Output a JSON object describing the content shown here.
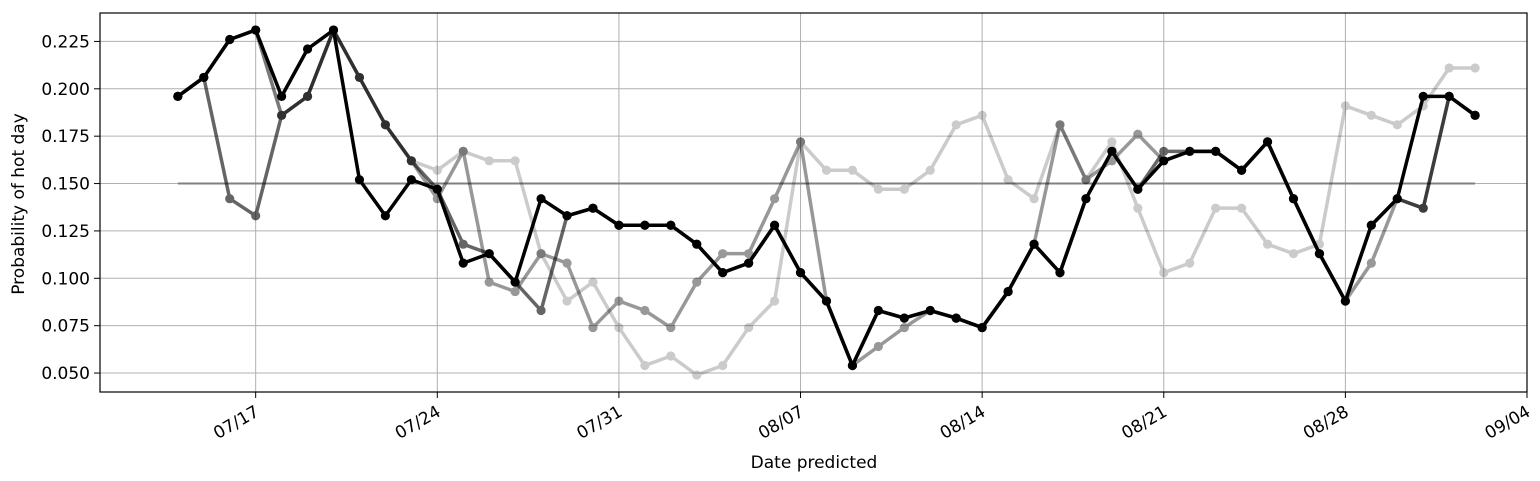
{
  "chart_data": {
    "type": "line",
    "title": "",
    "xlabel": "Date predicted",
    "ylabel": "Probability of hot day",
    "x_axis_kind": "date",
    "xlim": [
      "2019-07-11",
      "2019-09-04"
    ],
    "ylim": [
      0.04,
      0.24
    ],
    "x_ticks": [
      {
        "date": "2019-07-17",
        "label": "07/17"
      },
      {
        "date": "2019-07-24",
        "label": "07/24"
      },
      {
        "date": "2019-07-31",
        "label": "07/31"
      },
      {
        "date": "2019-08-07",
        "label": "08/07"
      },
      {
        "date": "2019-08-14",
        "label": "08/14"
      },
      {
        "date": "2019-08-21",
        "label": "08/21"
      },
      {
        "date": "2019-08-28",
        "label": "08/28"
      },
      {
        "date": "2019-09-04",
        "label": "09/04"
      }
    ],
    "y_ticks": [
      {
        "value": 0.05,
        "label": "0.050"
      },
      {
        "value": 0.075,
        "label": "0.075"
      },
      {
        "value": 0.1,
        "label": "0.100"
      },
      {
        "value": 0.125,
        "label": "0.125"
      },
      {
        "value": 0.15,
        "label": "0.150"
      },
      {
        "value": 0.175,
        "label": "0.175"
      },
      {
        "value": 0.2,
        "label": "0.200"
      },
      {
        "value": 0.225,
        "label": "0.225"
      }
    ],
    "grid": true,
    "reference_line": {
      "value": 0.15,
      "from": "2019-07-14",
      "to": "2019-09-02",
      "color": "#808080"
    },
    "series": [
      {
        "color": "#000000",
        "opacity": 0.2,
        "points": [
          [
            "2019-07-14",
            0.196
          ],
          [
            "2019-07-15",
            0.206
          ],
          [
            "2019-07-16",
            0.226
          ],
          [
            "2019-07-17",
            0.231
          ],
          [
            "2019-07-18",
            0.186
          ],
          [
            "2019-07-19",
            0.196
          ],
          [
            "2019-07-20",
            0.231
          ],
          [
            "2019-07-21",
            0.206
          ],
          [
            "2019-07-22",
            0.181
          ],
          [
            "2019-07-23",
            0.162
          ],
          [
            "2019-07-24",
            0.157
          ],
          [
            "2019-07-25",
            0.167
          ],
          [
            "2019-07-26",
            0.162
          ],
          [
            "2019-07-27",
            0.162
          ],
          [
            "2019-07-28",
            0.113
          ],
          [
            "2019-07-29",
            0.088
          ],
          [
            "2019-07-30",
            0.098
          ],
          [
            "2019-07-31",
            0.074
          ],
          [
            "2019-08-01",
            0.054
          ],
          [
            "2019-08-02",
            0.059
          ],
          [
            "2019-08-03",
            0.049
          ],
          [
            "2019-08-04",
            0.054
          ],
          [
            "2019-08-05",
            0.074
          ],
          [
            "2019-08-06",
            0.088
          ],
          [
            "2019-08-07",
            0.172
          ],
          [
            "2019-08-08",
            0.157
          ],
          [
            "2019-08-09",
            0.157
          ],
          [
            "2019-08-10",
            0.147
          ],
          [
            "2019-08-11",
            0.147
          ],
          [
            "2019-08-12",
            0.157
          ],
          [
            "2019-08-13",
            0.181
          ],
          [
            "2019-08-14",
            0.186
          ],
          [
            "2019-08-15",
            0.152
          ],
          [
            "2019-08-16",
            0.142
          ],
          [
            "2019-08-17",
            0.181
          ],
          [
            "2019-08-18",
            0.152
          ],
          [
            "2019-08-19",
            0.172
          ],
          [
            "2019-08-20",
            0.137
          ],
          [
            "2019-08-21",
            0.103
          ],
          [
            "2019-08-22",
            0.108
          ],
          [
            "2019-08-23",
            0.137
          ],
          [
            "2019-08-24",
            0.137
          ],
          [
            "2019-08-25",
            0.118
          ],
          [
            "2019-08-26",
            0.113
          ],
          [
            "2019-08-27",
            0.118
          ],
          [
            "2019-08-28",
            0.191
          ],
          [
            "2019-08-29",
            0.186
          ],
          [
            "2019-08-30",
            0.181
          ],
          [
            "2019-08-31",
            0.191
          ],
          [
            "2019-09-01",
            0.211
          ],
          [
            "2019-09-02",
            0.211
          ]
        ]
      },
      {
        "color": "#000000",
        "opacity": 0.4,
        "points": [
          [
            "2019-07-14",
            0.196
          ],
          [
            "2019-07-15",
            0.206
          ],
          [
            "2019-07-16",
            0.226
          ],
          [
            "2019-07-17",
            0.231
          ],
          [
            "2019-07-18",
            0.186
          ],
          [
            "2019-07-19",
            0.196
          ],
          [
            "2019-07-20",
            0.231
          ],
          [
            "2019-07-21",
            0.206
          ],
          [
            "2019-07-22",
            0.181
          ],
          [
            "2019-07-23",
            0.162
          ],
          [
            "2019-07-24",
            0.142
          ],
          [
            "2019-07-25",
            0.167
          ],
          [
            "2019-07-26",
            0.098
          ],
          [
            "2019-07-27",
            0.093
          ],
          [
            "2019-07-28",
            0.113
          ],
          [
            "2019-07-29",
            0.108
          ],
          [
            "2019-07-30",
            0.074
          ],
          [
            "2019-07-31",
            0.088
          ],
          [
            "2019-08-01",
            0.083
          ],
          [
            "2019-08-02",
            0.074
          ],
          [
            "2019-08-03",
            0.098
          ],
          [
            "2019-08-04",
            0.113
          ],
          [
            "2019-08-05",
            0.113
          ],
          [
            "2019-08-06",
            0.142
          ],
          [
            "2019-08-07",
            0.172
          ],
          [
            "2019-08-08",
            0.088
          ],
          [
            "2019-08-09",
            0.054
          ],
          [
            "2019-08-10",
            0.064
          ],
          [
            "2019-08-11",
            0.074
          ],
          [
            "2019-08-12",
            0.083
          ],
          [
            "2019-08-13",
            0.079
          ],
          [
            "2019-08-14",
            0.074
          ],
          [
            "2019-08-15",
            0.093
          ],
          [
            "2019-08-16",
            0.118
          ],
          [
            "2019-08-17",
            0.181
          ],
          [
            "2019-08-18",
            0.152
          ],
          [
            "2019-08-19",
            0.162
          ],
          [
            "2019-08-20",
            0.176
          ],
          [
            "2019-08-21",
            0.162
          ],
          [
            "2019-08-22",
            0.167
          ],
          [
            "2019-08-23",
            0.167
          ],
          [
            "2019-08-24",
            0.157
          ],
          [
            "2019-08-25",
            0.172
          ],
          [
            "2019-08-26",
            0.142
          ],
          [
            "2019-08-27",
            0.113
          ],
          [
            "2019-08-28",
            0.088
          ],
          [
            "2019-08-29",
            0.108
          ],
          [
            "2019-08-30",
            0.142
          ],
          [
            "2019-08-31",
            0.137
          ],
          [
            "2019-09-01",
            0.196
          ],
          [
            "2019-09-02",
            0.186
          ]
        ]
      },
      {
        "color": "#000000",
        "opacity": 0.6,
        "points": [
          [
            "2019-07-14",
            0.196
          ],
          [
            "2019-07-15",
            0.206
          ],
          [
            "2019-07-16",
            0.142
          ],
          [
            "2019-07-17",
            0.133
          ],
          [
            "2019-07-18",
            0.186
          ],
          [
            "2019-07-19",
            0.196
          ],
          [
            "2019-07-20",
            0.231
          ],
          [
            "2019-07-21",
            0.206
          ],
          [
            "2019-07-22",
            0.181
          ],
          [
            "2019-07-23",
            0.162
          ],
          [
            "2019-07-24",
            0.147
          ],
          [
            "2019-07-25",
            0.118
          ],
          [
            "2019-07-26",
            0.113
          ],
          [
            "2019-07-27",
            0.098
          ],
          [
            "2019-07-28",
            0.083
          ],
          [
            "2019-07-29",
            0.133
          ],
          [
            "2019-07-30",
            0.137
          ],
          [
            "2019-07-31",
            0.128
          ],
          [
            "2019-08-01",
            0.128
          ],
          [
            "2019-08-02",
            0.128
          ],
          [
            "2019-08-03",
            0.118
          ],
          [
            "2019-08-04",
            0.103
          ],
          [
            "2019-08-05",
            0.108
          ],
          [
            "2019-08-06",
            0.128
          ],
          [
            "2019-08-07",
            0.103
          ],
          [
            "2019-08-08",
            0.088
          ],
          [
            "2019-08-09",
            0.054
          ],
          [
            "2019-08-10",
            0.083
          ],
          [
            "2019-08-11",
            0.079
          ],
          [
            "2019-08-12",
            0.083
          ],
          [
            "2019-08-13",
            0.079
          ],
          [
            "2019-08-14",
            0.074
          ],
          [
            "2019-08-15",
            0.093
          ],
          [
            "2019-08-16",
            0.118
          ],
          [
            "2019-08-17",
            0.103
          ],
          [
            "2019-08-18",
            0.142
          ],
          [
            "2019-08-19",
            0.167
          ],
          [
            "2019-08-20",
            0.147
          ],
          [
            "2019-08-21",
            0.167
          ],
          [
            "2019-08-22",
            0.167
          ],
          [
            "2019-08-23",
            0.167
          ],
          [
            "2019-08-24",
            0.157
          ],
          [
            "2019-08-25",
            0.172
          ],
          [
            "2019-08-26",
            0.142
          ],
          [
            "2019-08-27",
            0.113
          ],
          [
            "2019-08-28",
            0.088
          ],
          [
            "2019-08-29",
            0.128
          ],
          [
            "2019-08-30",
            0.142
          ],
          [
            "2019-08-31",
            0.137
          ],
          [
            "2019-09-01",
            0.196
          ],
          [
            "2019-09-02",
            0.186
          ]
        ]
      },
      {
        "color": "#000000",
        "opacity": 1.0,
        "points": [
          [
            "2019-07-14",
            0.196
          ],
          [
            "2019-07-15",
            0.206
          ],
          [
            "2019-07-16",
            0.226
          ],
          [
            "2019-07-17",
            0.231
          ],
          [
            "2019-07-18",
            0.196
          ],
          [
            "2019-07-19",
            0.221
          ],
          [
            "2019-07-20",
            0.231
          ],
          [
            "2019-07-21",
            0.152
          ],
          [
            "2019-07-22",
            0.133
          ],
          [
            "2019-07-23",
            0.152
          ],
          [
            "2019-07-24",
            0.147
          ],
          [
            "2019-07-25",
            0.108
          ],
          [
            "2019-07-26",
            0.113
          ],
          [
            "2019-07-27",
            0.098
          ],
          [
            "2019-07-28",
            0.142
          ],
          [
            "2019-07-29",
            0.133
          ],
          [
            "2019-07-30",
            0.137
          ],
          [
            "2019-07-31",
            0.128
          ],
          [
            "2019-08-01",
            0.128
          ],
          [
            "2019-08-02",
            0.128
          ],
          [
            "2019-08-03",
            0.118
          ],
          [
            "2019-08-04",
            0.103
          ],
          [
            "2019-08-05",
            0.108
          ],
          [
            "2019-08-06",
            0.128
          ],
          [
            "2019-08-07",
            0.103
          ],
          [
            "2019-08-08",
            0.088
          ],
          [
            "2019-08-09",
            0.054
          ],
          [
            "2019-08-10",
            0.083
          ],
          [
            "2019-08-11",
            0.079
          ],
          [
            "2019-08-12",
            0.083
          ],
          [
            "2019-08-13",
            0.079
          ],
          [
            "2019-08-14",
            0.074
          ],
          [
            "2019-08-15",
            0.093
          ],
          [
            "2019-08-16",
            0.118
          ],
          [
            "2019-08-17",
            0.103
          ],
          [
            "2019-08-18",
            0.142
          ],
          [
            "2019-08-19",
            0.167
          ],
          [
            "2019-08-20",
            0.147
          ],
          [
            "2019-08-21",
            0.162
          ],
          [
            "2019-08-22",
            0.167
          ],
          [
            "2019-08-23",
            0.167
          ],
          [
            "2019-08-24",
            0.157
          ],
          [
            "2019-08-25",
            0.172
          ],
          [
            "2019-08-26",
            0.142
          ],
          [
            "2019-08-27",
            0.113
          ],
          [
            "2019-08-28",
            0.088
          ],
          [
            "2019-08-29",
            0.128
          ],
          [
            "2019-08-30",
            0.142
          ],
          [
            "2019-08-31",
            0.196
          ],
          [
            "2019-09-01",
            0.196
          ],
          [
            "2019-09-02",
            0.186
          ]
        ]
      }
    ]
  }
}
